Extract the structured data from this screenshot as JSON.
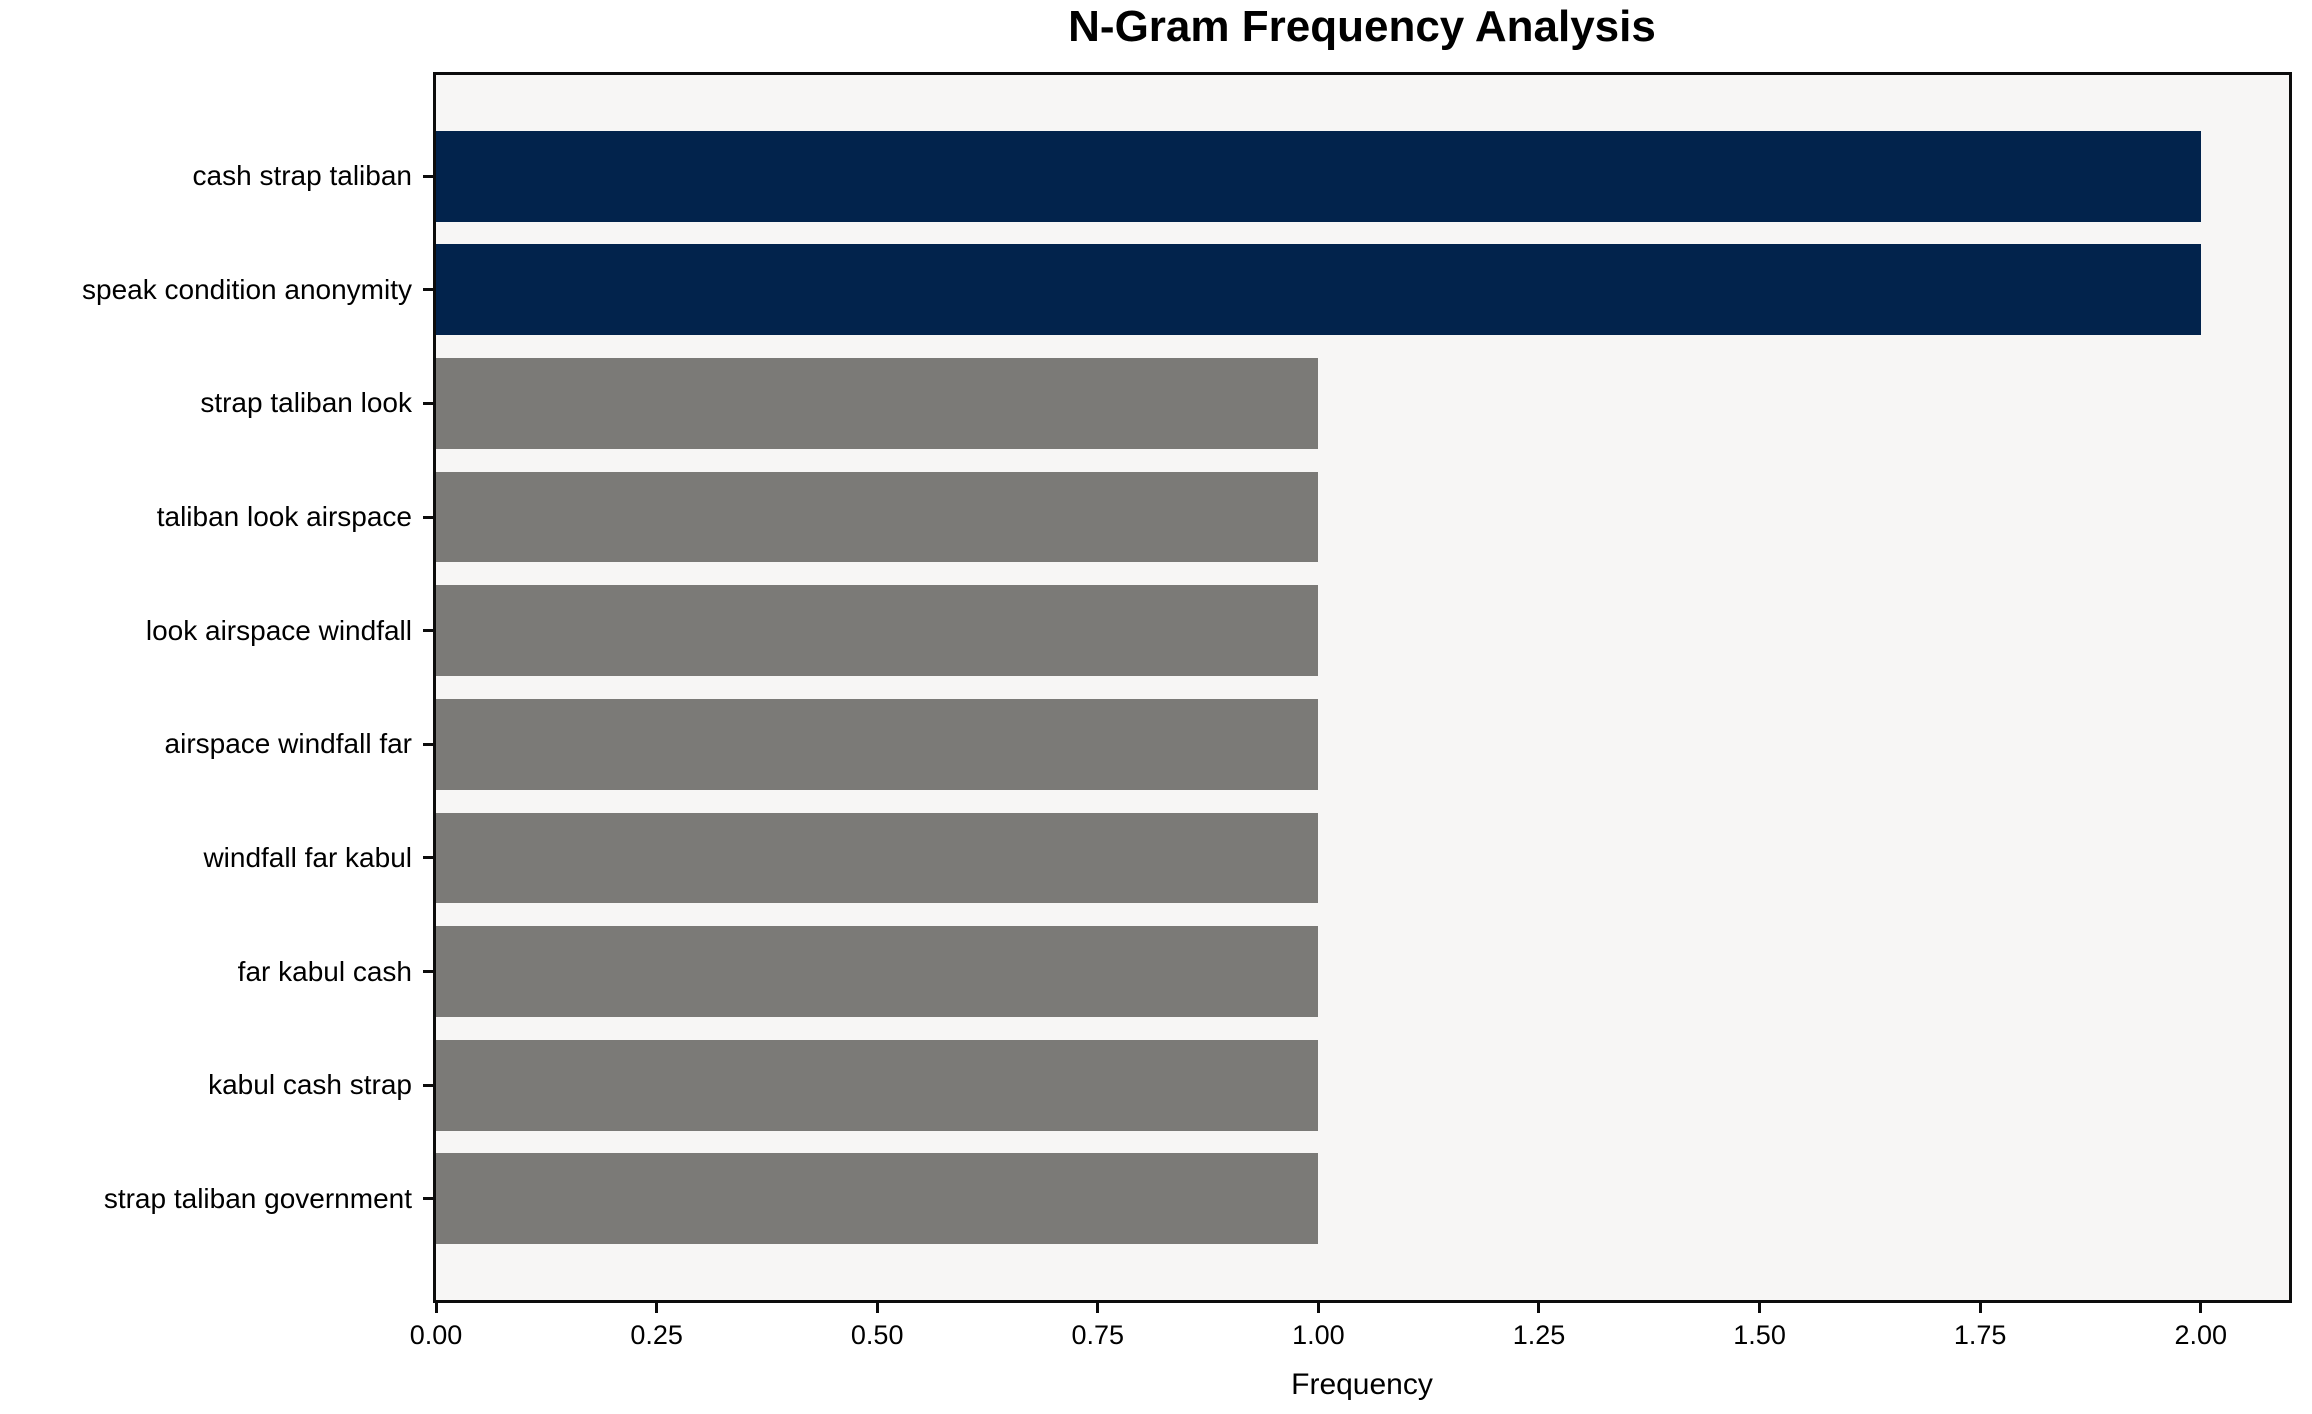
{
  "chart_data": {
    "type": "bar",
    "orientation": "horizontal",
    "title": "N-Gram Frequency Analysis",
    "xlabel": "Frequency",
    "ylabel": "",
    "categories": [
      "cash strap taliban",
      "speak condition anonymity",
      "strap taliban look",
      "taliban look airspace",
      "look airspace windfall",
      "airspace windfall far",
      "windfall far kabul",
      "far kabul cash",
      "kabul cash strap",
      "strap taliban government"
    ],
    "values": [
      2,
      2,
      1,
      1,
      1,
      1,
      1,
      1,
      1,
      1
    ],
    "xlim": [
      0,
      2.1
    ],
    "xtick_labels": [
      "0.00",
      "0.25",
      "0.50",
      "0.75",
      "1.00",
      "1.25",
      "1.50",
      "1.75",
      "2.00"
    ],
    "grid": false,
    "legend": "none",
    "bar_colors": [
      "#02234c",
      "#02234c",
      "#7b7a77",
      "#7b7a77",
      "#7b7a77",
      "#7b7a77",
      "#7b7a77",
      "#7b7a77",
      "#7b7a77",
      "#7b7a77"
    ],
    "colors": {
      "highlight_bar": "#02234c",
      "default_bar": "#7b7a77",
      "axes_background": "#f7f6f5",
      "figure_background": "#ffffff",
      "spine": "#0c0c0c",
      "text": "#000000"
    }
  }
}
